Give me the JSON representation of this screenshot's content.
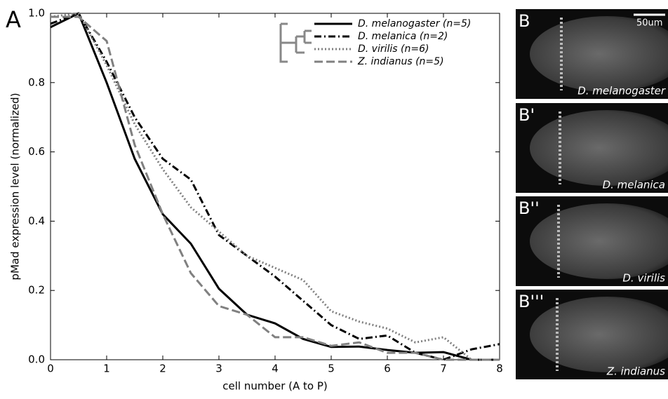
{
  "panel_label": "A",
  "chart_data": {
    "type": "line",
    "x_label": "cell number (A to P)",
    "y_label": "pMad expression level (normalized)",
    "x": [
      0,
      0.5,
      1,
      1.5,
      2,
      2.5,
      3,
      3.5,
      4,
      4.5,
      5,
      5.5,
      6,
      6.5,
      7,
      7.5,
      8
    ],
    "series": [
      {
        "name": "D. melanogaster (n=5)",
        "color": "#000000",
        "dash": "solid",
        "values": [
          0.96,
          1.0,
          0.8,
          0.58,
          0.42,
          0.335,
          0.205,
          0.13,
          0.105,
          0.06,
          0.037,
          0.038,
          0.028,
          0.02,
          0.022,
          0.0,
          0.0
        ]
      },
      {
        "name": "D. melanica (n=2)",
        "color": "#000000",
        "dash": "dashdot",
        "values": [
          0.97,
          1.0,
          0.86,
          0.7,
          0.58,
          0.52,
          0.36,
          0.3,
          0.24,
          0.17,
          0.1,
          0.06,
          0.07,
          0.02,
          0.0,
          0.03,
          0.045
        ]
      },
      {
        "name": "D. virilis (n=6)",
        "color": "#808080",
        "dash": "dotted",
        "values": [
          0.99,
          1.0,
          0.85,
          0.68,
          0.55,
          0.44,
          0.37,
          0.3,
          0.265,
          0.23,
          0.14,
          0.11,
          0.09,
          0.05,
          0.065,
          0.0,
          0.0
        ]
      },
      {
        "name": "Z. indianus (n=5)",
        "color": "#808080",
        "dash": "dashed",
        "values": [
          0.99,
          0.99,
          0.92,
          0.62,
          0.42,
          0.25,
          0.155,
          0.13,
          0.065,
          0.065,
          0.04,
          0.05,
          0.02,
          0.02,
          0.0,
          0.0,
          0.0
        ]
      }
    ],
    "xlim": [
      0,
      8
    ],
    "xticks": [
      0,
      1,
      2,
      3,
      4,
      5,
      6,
      7,
      8
    ],
    "ylim": [
      0,
      1.0
    ],
    "yticks": [
      {
        "value": 0,
        "label": "0.0"
      },
      0.2,
      0.4,
      0.6,
      0.8,
      {
        "value": 1.0,
        "label": "1.0"
      }
    ],
    "legend": "upper right"
  },
  "scale_bar": "50um",
  "images": [
    {
      "label": "B",
      "caption": "D. melanogaster"
    },
    {
      "label": "B'",
      "caption": "D. melanica"
    },
    {
      "label": "B''",
      "caption": "D. virilis"
    },
    {
      "label": "B'''",
      "caption": "Z. indianus"
    }
  ]
}
